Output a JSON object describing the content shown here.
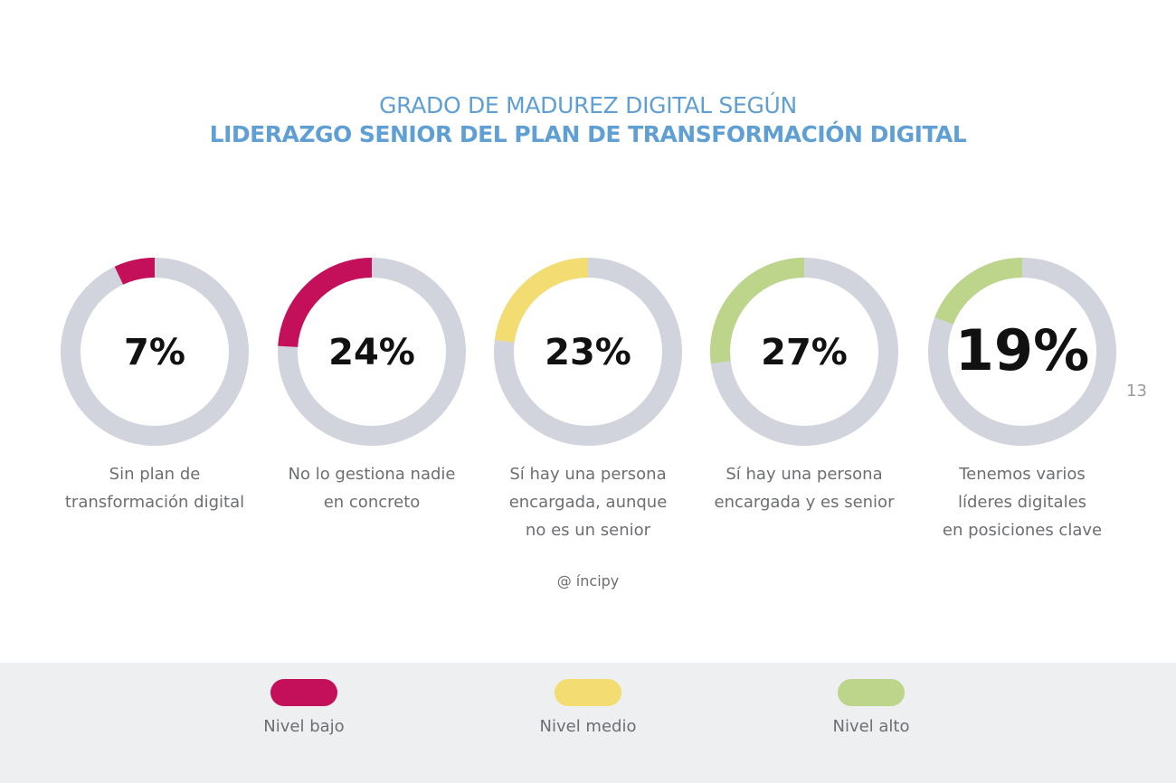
{
  "header": {
    "line1": "GRADO DE MADUREZ DIGITAL SEGÚN",
    "line2": "LIDERAZGO SENIOR DEL PLAN DE TRANSFORMACIÓN DIGITAL"
  },
  "page_number": "13",
  "credit": "@ íncipy",
  "colors": {
    "low": "#c4105a",
    "medium": "#f3dd72",
    "high": "#bdd48b",
    "track": "#d1d4dc",
    "title": "#5f9fd3"
  },
  "chart_data": {
    "type": "pie",
    "variant": "donut-set",
    "items": [
      {
        "value": 7,
        "label": "7%",
        "category": "Sin plan de\ntransformación digital",
        "level": "low"
      },
      {
        "value": 24,
        "label": "24%",
        "category": "No lo gestiona nadie\nen concreto",
        "level": "low"
      },
      {
        "value": 23,
        "label": "23%",
        "category": "Sí hay una persona\nencargada, aunque\nno es un senior",
        "level": "medium"
      },
      {
        "value": 27,
        "label": "27%",
        "category": "Sí hay una persona\nencargada y es senior",
        "level": "high"
      },
      {
        "value": 19,
        "label": "19%",
        "category": "Tenemos varios\nlíderes digitales\nen posiciones clave",
        "level": "high"
      }
    ]
  },
  "legend": {
    "items": [
      {
        "label": "Nivel bajo",
        "level": "low"
      },
      {
        "label": "Nivel medio",
        "level": "medium"
      },
      {
        "label": "Nivel alto",
        "level": "high"
      }
    ]
  }
}
